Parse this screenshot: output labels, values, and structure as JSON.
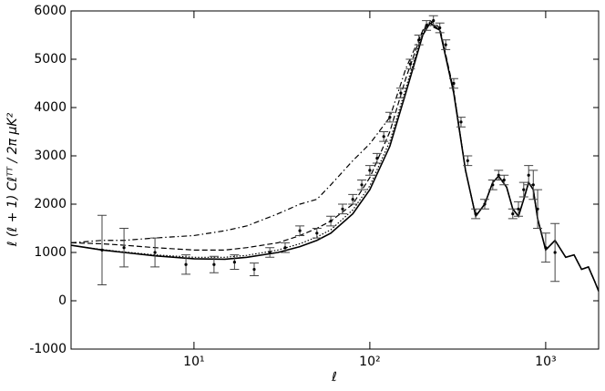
{
  "chart_data": {
    "type": "line",
    "xlabel": "ℓ",
    "ylabel": "ℓ (ℓ + 1) Cℓᵀᵀ / 2π μK²",
    "xscale": "log",
    "xlim": [
      2,
      2000
    ],
    "ylim": [
      -1000,
      6000
    ],
    "xticks": [
      {
        "value": 10,
        "label": "10¹"
      },
      {
        "value": 100,
        "label": "10²"
      },
      {
        "value": 1000,
        "label": "10³"
      }
    ],
    "yticks": [
      -1000,
      0,
      1000,
      2000,
      3000,
      4000,
      5000,
      6000
    ],
    "x": [
      2,
      3,
      4,
      6,
      10,
      15,
      20,
      30,
      40,
      50,
      60,
      80,
      100,
      130,
      160,
      200,
      220,
      250,
      300,
      350,
      400,
      450,
      500,
      540,
      600,
      650,
      700,
      750,
      800,
      850,
      900,
      1000,
      1130,
      1300,
      1450,
      1600,
      1750,
      1900,
      2000
    ],
    "series": [
      {
        "color": "#000000",
        "dash": "solid",
        "values": [
          1150,
          1050,
          1000,
          930,
          870,
          860,
          900,
          1000,
          1120,
          1250,
          1400,
          1800,
          2300,
          3200,
          4300,
          5500,
          5750,
          5600,
          4300,
          2700,
          1750,
          2000,
          2450,
          2580,
          2350,
          1900,
          1750,
          2100,
          2450,
          2300,
          1700,
          1050,
          1250,
          900,
          950,
          650,
          700,
          400,
          200
        ]
      },
      {
        "color": "#000000",
        "dash": "dotted",
        "values": [
          1150,
          1060,
          1010,
          950,
          900,
          900,
          940,
          1050,
          1180,
          1320,
          1470,
          1880,
          2380,
          3300,
          4400,
          5550,
          5780,
          5600,
          4300,
          2700,
          1750,
          2000,
          2450,
          2580,
          2350,
          1900,
          1750,
          2100,
          2450,
          2300,
          1700,
          1050,
          1250,
          900,
          950,
          650,
          700,
          400,
          200
        ]
      },
      {
        "color": "#000000",
        "dash": "dashed",
        "values": [
          1200,
          1180,
          1150,
          1100,
          1050,
          1050,
          1100,
          1200,
          1350,
          1500,
          1650,
          2000,
          2550,
          3500,
          4600,
          5600,
          5800,
          5650,
          4350,
          2700,
          1750,
          2000,
          2450,
          2580,
          2350,
          1900,
          1750,
          2100,
          2450,
          2300,
          1700,
          1050,
          1250,
          900,
          950,
          650,
          700,
          400,
          200
        ]
      },
      {
        "color": "#000000",
        "dash": "dashdot",
        "values": [
          1200,
          1250,
          1250,
          1300,
          1350,
          1450,
          1550,
          1800,
          2000,
          2100,
          2400,
          2900,
          3250,
          3800,
          4800,
          5600,
          5700,
          5600,
          4350,
          2700,
          1750,
          2000,
          2450,
          2580,
          2350,
          1900,
          1750,
          2100,
          2450,
          2300,
          1700,
          1050,
          1250,
          900,
          950,
          650,
          700,
          400,
          200
        ]
      }
    ],
    "points": {
      "x": [
        3,
        4,
        6,
        9,
        13,
        17,
        22,
        27,
        33,
        40,
        50,
        60,
        70,
        80,
        90,
        100,
        110,
        120,
        130,
        150,
        170,
        190,
        210,
        230,
        250,
        270,
        300,
        330,
        360,
        400,
        450,
        500,
        540,
        580,
        650,
        700,
        750,
        800,
        850,
        900,
        1000,
        1130
      ],
      "values": [
        1050,
        1100,
        1000,
        750,
        750,
        800,
        650,
        1000,
        1100,
        1450,
        1400,
        1650,
        1900,
        2100,
        2400,
        2700,
        2950,
        3400,
        3800,
        4300,
        4900,
        5400,
        5700,
        5800,
        5650,
        5300,
        4500,
        3700,
        2900,
        1800,
        2000,
        2400,
        2600,
        2500,
        1800,
        1900,
        2300,
        2600,
        2400,
        1900,
        1100,
        1000
      ],
      "errors": [
        720,
        400,
        300,
        200,
        170,
        150,
        130,
        100,
        100,
        100,
        100,
        100,
        100,
        100,
        100,
        100,
        100,
        100,
        100,
        100,
        100,
        100,
        100,
        100,
        100,
        100,
        100,
        100,
        100,
        100,
        100,
        100,
        100,
        100,
        100,
        150,
        150,
        200,
        300,
        400,
        300,
        600
      ]
    }
  }
}
